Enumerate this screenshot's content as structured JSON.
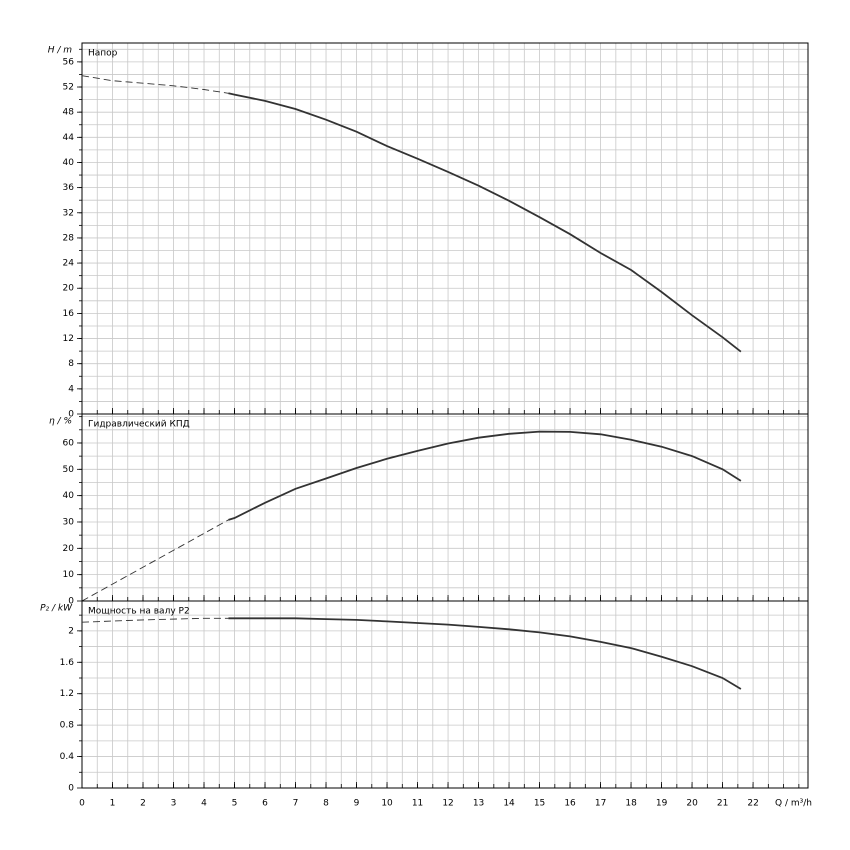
{
  "chart_data": [
    {
      "type": "line",
      "ylabel": "H / m",
      "annotation": "Напор",
      "xlim": [
        0,
        23.8
      ],
      "x_minor_step": 0.5,
      "xticks": [
        0,
        1,
        2,
        3,
        4,
        5,
        6,
        7,
        8,
        9,
        10,
        11,
        12,
        13,
        14,
        15,
        16,
        17,
        18,
        19,
        20,
        21,
        22
      ],
      "ylim": [
        0,
        59
      ],
      "y_minor_step": 2,
      "yticks": [
        0,
        4,
        8,
        12,
        16,
        20,
        24,
        28,
        32,
        36,
        40,
        44,
        48,
        52,
        56
      ],
      "grid": true,
      "series": [
        {
          "style": "dashed",
          "color": "#333333",
          "x": [
            0,
            1,
            2,
            3,
            4,
            4.8
          ],
          "values": [
            53.8,
            53,
            52.6,
            52.2,
            51.6,
            51
          ]
        },
        {
          "style": "solid",
          "color": "#333333",
          "x": [
            4.8,
            5,
            6,
            7,
            8,
            9,
            10,
            11,
            12,
            13,
            14,
            15,
            16,
            17,
            18,
            19,
            20,
            21,
            21.6
          ],
          "values": [
            51,
            50.8,
            49.8,
            48.5,
            46.8,
            44.9,
            42.6,
            40.6,
            38.5,
            36.3,
            33.9,
            31.3,
            28.6,
            25.6,
            22.9,
            19.4,
            15.7,
            12.2,
            9.9
          ]
        }
      ]
    },
    {
      "type": "line",
      "ylabel": "η / %",
      "annotation": "Гидравлический КПД",
      "xlim": [
        0,
        23.8
      ],
      "x_minor_step": 0.5,
      "xticks": [
        0,
        1,
        2,
        3,
        4,
        5,
        6,
        7,
        8,
        9,
        10,
        11,
        12,
        13,
        14,
        15,
        16,
        17,
        18,
        19,
        20,
        21,
        22
      ],
      "ylim": [
        0,
        71
      ],
      "y_minor_step": 5,
      "yticks": [
        0,
        10,
        20,
        30,
        40,
        50,
        60
      ],
      "grid": true,
      "series": [
        {
          "style": "dashed",
          "color": "#333333",
          "x": [
            0,
            4.8
          ],
          "values": [
            0,
            30.8
          ]
        },
        {
          "style": "solid",
          "color": "#333333",
          "x": [
            4.8,
            5,
            6,
            7,
            8,
            9,
            10,
            11,
            12,
            13,
            14,
            15,
            16,
            17,
            18,
            19,
            20,
            21,
            21.6
          ],
          "values": [
            30.8,
            31.5,
            37.3,
            42.6,
            46.5,
            50.5,
            54,
            57,
            59.8,
            62,
            63.5,
            64.3,
            64.2,
            63.3,
            61.2,
            58.6,
            55,
            50,
            45.6
          ]
        }
      ]
    },
    {
      "type": "line",
      "ylabel": "P₂ / kW",
      "annotation": "Мощность на валу P2",
      "xlabel": "Q / m³/h",
      "xlim": [
        0,
        23.8
      ],
      "x_minor_step": 0.5,
      "xticks": [
        0,
        1,
        2,
        3,
        4,
        5,
        6,
        7,
        8,
        9,
        10,
        11,
        12,
        13,
        14,
        15,
        16,
        17,
        18,
        19,
        20,
        21,
        22
      ],
      "ylim": [
        0,
        2.38
      ],
      "y_minor_step": 0.2,
      "yticks": [
        0,
        0.4,
        0.8,
        1.2,
        1.6,
        2
      ],
      "grid": true,
      "series": [
        {
          "style": "dashed",
          "color": "#333333",
          "x": [
            0,
            2,
            4,
            4.8
          ],
          "values": [
            2.11,
            2.14,
            2.16,
            2.16
          ]
        },
        {
          "style": "solid",
          "color": "#333333",
          "x": [
            4.8,
            5,
            7,
            8,
            9,
            10,
            11,
            12,
            13,
            14,
            15,
            16,
            17,
            18,
            19,
            20,
            21,
            21.6
          ],
          "values": [
            2.16,
            2.16,
            2.16,
            2.15,
            2.14,
            2.12,
            2.1,
            2.08,
            2.05,
            2.02,
            1.98,
            1.93,
            1.86,
            1.78,
            1.67,
            1.55,
            1.4,
            1.26
          ]
        }
      ]
    }
  ]
}
